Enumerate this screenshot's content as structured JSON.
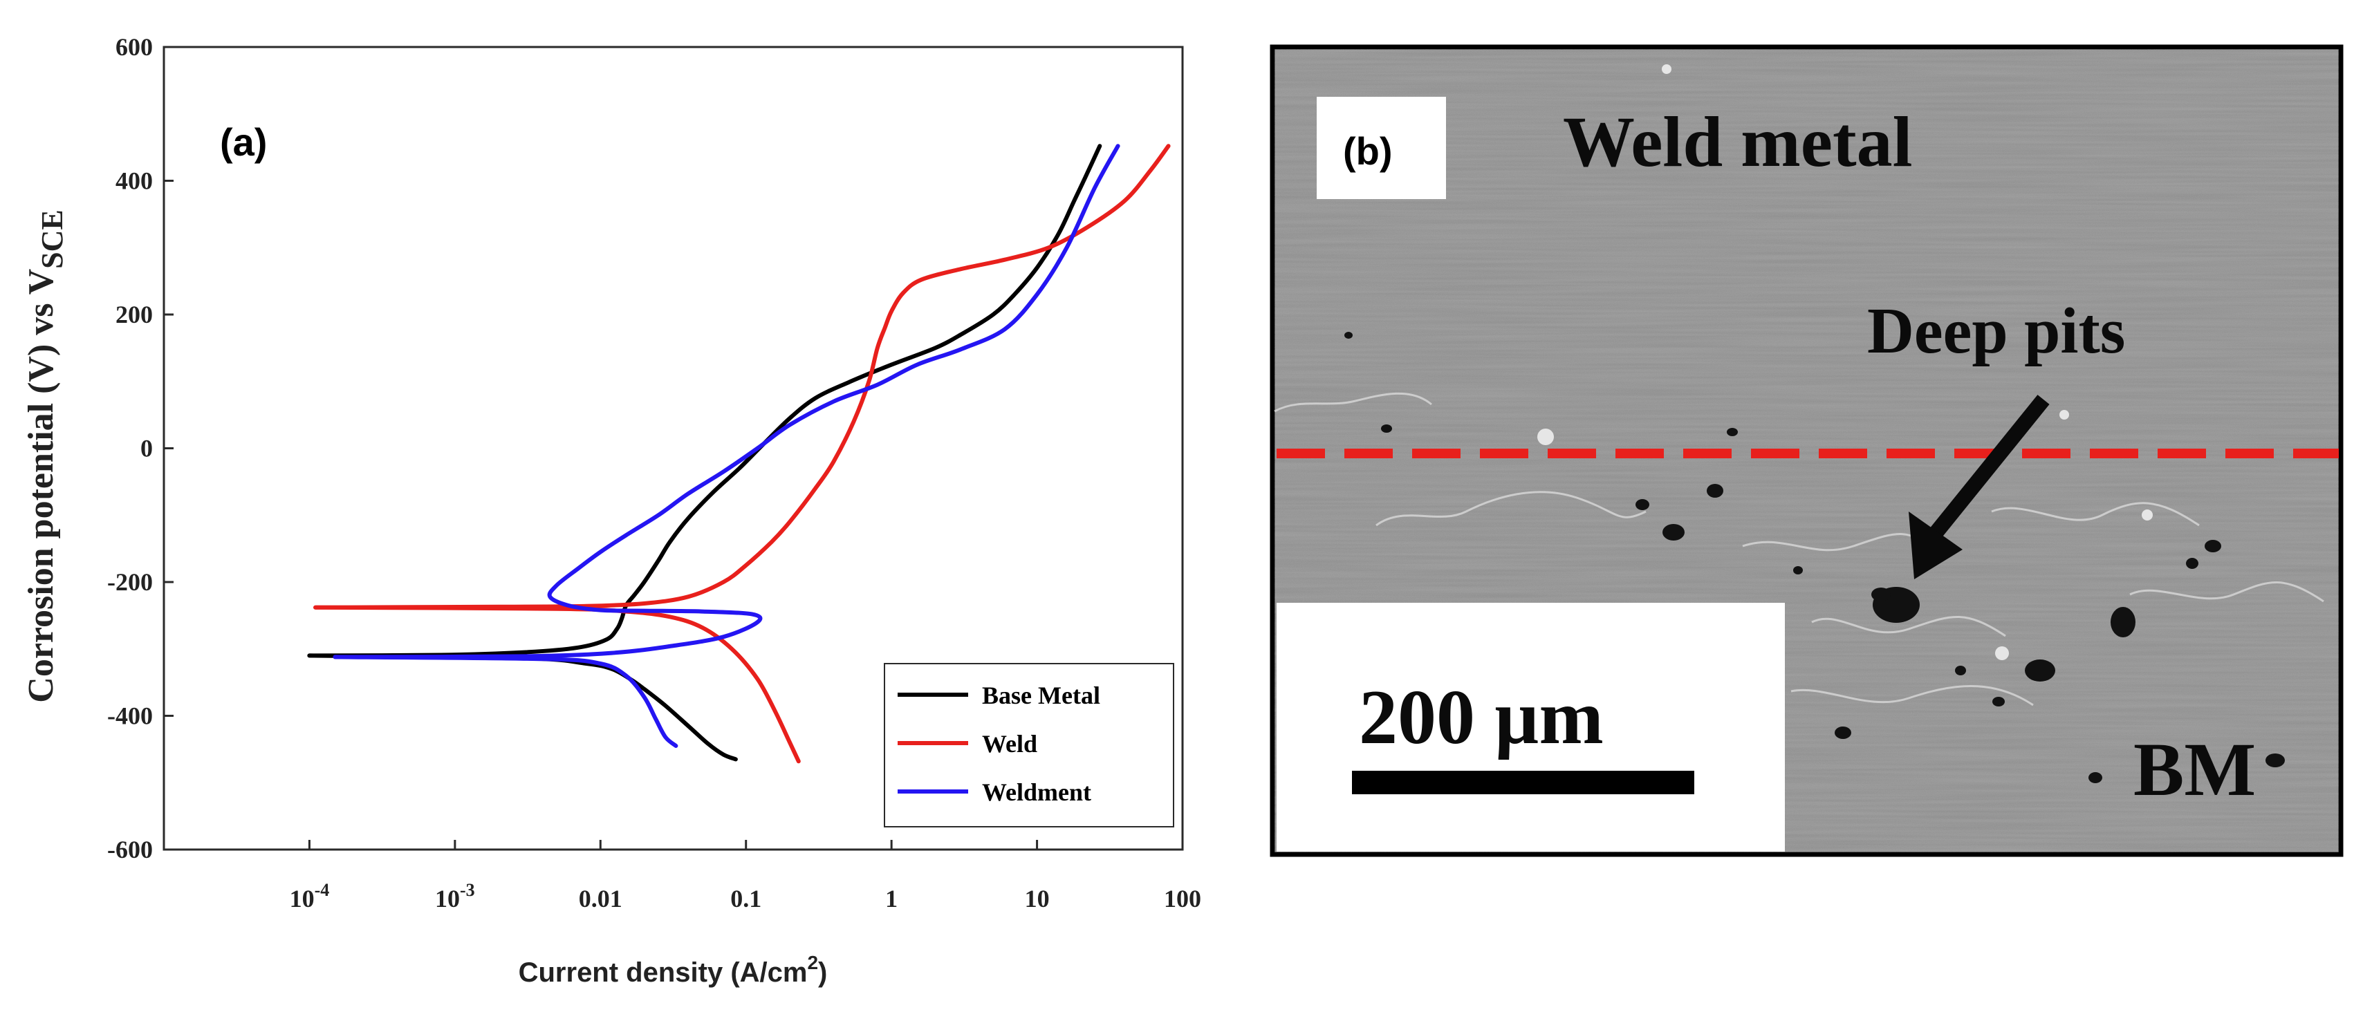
{
  "figure": {
    "panel_a_label": "(a)",
    "panel_b_label": "(b)"
  },
  "chart_data": {
    "type": "line",
    "xscale": "log",
    "xlim": [
      1e-05,
      100
    ],
    "ylim": [
      -600,
      600
    ],
    "xlabel": "Current density (A/cm²)",
    "xlabel_main": "Current density (A/cm",
    "xlabel_sup": "2",
    "xlabel_end": ")",
    "ylabel": "Corrosion potential (V) vs V_SCE",
    "ylabel_main": "Corrosion potential (V) vs V",
    "ylabel_sub": "SCE",
    "xticks": [
      {
        "value": 0.0001,
        "base": "10",
        "exp": "-4"
      },
      {
        "value": 0.001,
        "base": "10",
        "exp": "-3"
      },
      {
        "value": 0.01,
        "label": "0.01"
      },
      {
        "value": 0.1,
        "label": "0.1"
      },
      {
        "value": 1,
        "label": "1"
      },
      {
        "value": 10,
        "label": "10"
      },
      {
        "value": 100,
        "label": "100"
      }
    ],
    "yticks": [
      600,
      400,
      200,
      0,
      -200,
      -400,
      -600
    ],
    "legend_position": "bottom-right",
    "series": [
      {
        "name": "Base Metal",
        "color": "#000000",
        "points": [
          [
            0.0001,
            -310
          ],
          [
            0.0008,
            -309
          ],
          [
            0.003,
            -305
          ],
          [
            0.007,
            -298
          ],
          [
            0.011,
            -286
          ],
          [
            0.013,
            -270
          ],
          [
            0.014,
            -255
          ],
          [
            0.015,
            -235
          ],
          [
            0.017,
            -220
          ],
          [
            0.02,
            -200
          ],
          [
            0.025,
            -168
          ],
          [
            0.03,
            -140
          ],
          [
            0.04,
            -105
          ],
          [
            0.06,
            -65
          ],
          [
            0.09,
            -30
          ],
          [
            0.13,
            5
          ],
          [
            0.2,
            45
          ],
          [
            0.3,
            75
          ],
          [
            0.5,
            98
          ],
          [
            1,
            125
          ],
          [
            2,
            150
          ],
          [
            3,
            170
          ],
          [
            5,
            200
          ],
          [
            7,
            230
          ],
          [
            10,
            270
          ],
          [
            14,
            320
          ],
          [
            18,
            370
          ],
          [
            22,
            410
          ],
          [
            27,
            452
          ]
        ],
        "cathodic": [
          [
            0.0001,
            -310
          ],
          [
            0.003,
            -314
          ],
          [
            0.008,
            -322
          ],
          [
            0.012,
            -330
          ],
          [
            0.016,
            -345
          ],
          [
            0.02,
            -360
          ],
          [
            0.028,
            -385
          ],
          [
            0.04,
            -415
          ],
          [
            0.055,
            -442
          ],
          [
            0.07,
            -458
          ],
          [
            0.085,
            -465
          ]
        ]
      },
      {
        "name": "Weld",
        "color": "#e8201c",
        "points": [
          [
            0.00011,
            -238
          ],
          [
            0.002,
            -237
          ],
          [
            0.008,
            -236
          ],
          [
            0.02,
            -232
          ],
          [
            0.04,
            -222
          ],
          [
            0.07,
            -200
          ],
          [
            0.1,
            -175
          ],
          [
            0.15,
            -140
          ],
          [
            0.2,
            -110
          ],
          [
            0.3,
            -60
          ],
          [
            0.4,
            -20
          ],
          [
            0.55,
            40
          ],
          [
            0.7,
            100
          ],
          [
            0.8,
            150
          ],
          [
            0.9,
            180
          ],
          [
            1,
            205
          ],
          [
            1.2,
            232
          ],
          [
            1.6,
            252
          ],
          [
            3,
            268
          ],
          [
            6,
            282
          ],
          [
            12,
            300
          ],
          [
            22,
            330
          ],
          [
            40,
            370
          ],
          [
            60,
            415
          ],
          [
            80,
            452
          ]
        ],
        "cathodic": [
          [
            0.00011,
            -238
          ],
          [
            0.005,
            -240
          ],
          [
            0.015,
            -244
          ],
          [
            0.03,
            -252
          ],
          [
            0.05,
            -268
          ],
          [
            0.08,
            -300
          ],
          [
            0.12,
            -345
          ],
          [
            0.16,
            -395
          ],
          [
            0.2,
            -440
          ],
          [
            0.23,
            -468
          ]
        ]
      },
      {
        "name": "Weldment",
        "color": "#2415f2",
        "points": [
          [
            0.00015,
            -312
          ],
          [
            0.003,
            -311
          ],
          [
            0.012,
            -306
          ],
          [
            0.03,
            -296
          ],
          [
            0.07,
            -282
          ],
          [
            0.12,
            -260
          ],
          [
            0.11,
            -248
          ],
          [
            0.05,
            -244
          ],
          [
            0.02,
            -243
          ],
          [
            0.01,
            -242
          ],
          [
            0.006,
            -235
          ],
          [
            0.0045,
            -222
          ],
          [
            0.005,
            -205
          ],
          [
            0.007,
            -180
          ],
          [
            0.01,
            -155
          ],
          [
            0.015,
            -130
          ],
          [
            0.025,
            -100
          ],
          [
            0.04,
            -68
          ],
          [
            0.07,
            -35
          ],
          [
            0.12,
            0
          ],
          [
            0.2,
            35
          ],
          [
            0.4,
            70
          ],
          [
            0.8,
            95
          ],
          [
            1.5,
            125
          ],
          [
            3,
            148
          ],
          [
            6,
            178
          ],
          [
            10,
            230
          ],
          [
            16,
            300
          ],
          [
            25,
            390
          ],
          [
            36,
            452
          ]
        ],
        "cathodic": [
          [
            0.00015,
            -312
          ],
          [
            0.004,
            -315
          ],
          [
            0.01,
            -322
          ],
          [
            0.015,
            -340
          ],
          [
            0.02,
            -372
          ],
          [
            0.024,
            -405
          ],
          [
            0.028,
            -432
          ],
          [
            0.033,
            -445
          ]
        ]
      }
    ]
  },
  "sem": {
    "label_weld_metal": "Weld metal",
    "label_deep_pits": "Deep pits",
    "label_bm": "BM",
    "scale_bar": "200 µm",
    "boundary_color": "#e8201c"
  }
}
